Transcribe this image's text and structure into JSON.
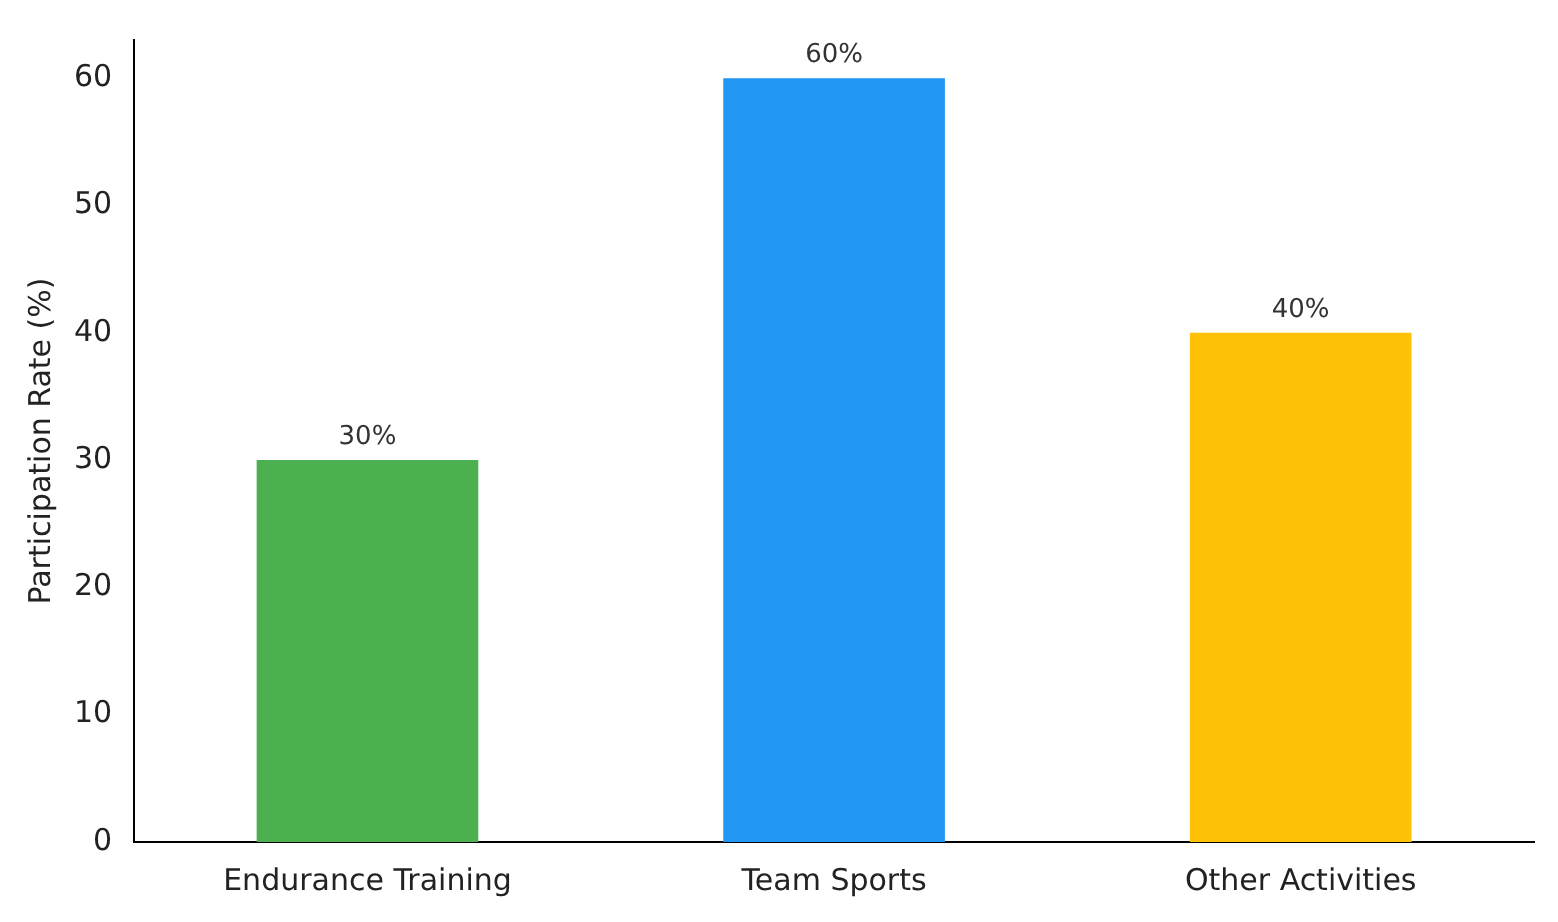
{
  "chart_data": {
    "type": "bar",
    "ylabel": "Participation Rate (%)",
    "categories": [
      "Endurance Training",
      "Team Sports",
      "Other Activities"
    ],
    "values": [
      30,
      60,
      40
    ],
    "colors": [
      "#4caf50",
      "#2196f3",
      "#ffc107"
    ],
    "value_labels": [
      "30%",
      "60%",
      "40%"
    ],
    "ylim": [
      0,
      63
    ],
    "yticks": [
      0,
      10,
      20,
      30,
      40,
      50,
      60
    ],
    "grid": false,
    "legend": false
  }
}
